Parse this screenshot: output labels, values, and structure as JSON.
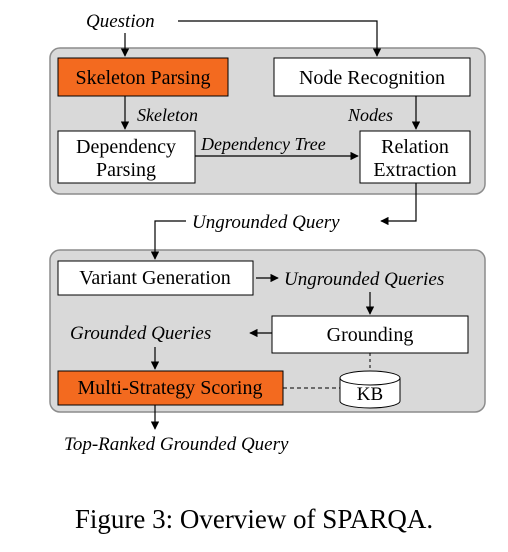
{
  "top_panel": {
    "question": "Question",
    "skeleton_parsing": "Skeleton Parsing",
    "node_recognition": "Node Recognition",
    "skeleton_label": "Skeleton",
    "nodes_label": "Nodes",
    "dependency_parsing": [
      "Dependency",
      "Parsing"
    ],
    "dependency_tree_label": "Dependency Tree",
    "relation_extraction": [
      "Relation",
      "Extraction"
    ]
  },
  "ungrounded_query": "Ungrounded Query",
  "bottom_panel": {
    "variant_generation": "Variant Generation",
    "ungrounded_queries": "Ungrounded Queries",
    "grounded_queries": "Grounded Queries",
    "grounding": "Grounding",
    "multi_strategy_scoring": "Multi-Strategy Scoring",
    "kb": "KB"
  },
  "top_ranked": "Top-Ranked Grounded Query",
  "caption": "Figure 3: Overview of SPARQA.",
  "colors": {
    "panel_bg": "#d9d9d9",
    "panel_border": "#8c8c8c",
    "highlight": "#f36a1f",
    "box_bg": "#ffffff",
    "line": "#000000"
  }
}
